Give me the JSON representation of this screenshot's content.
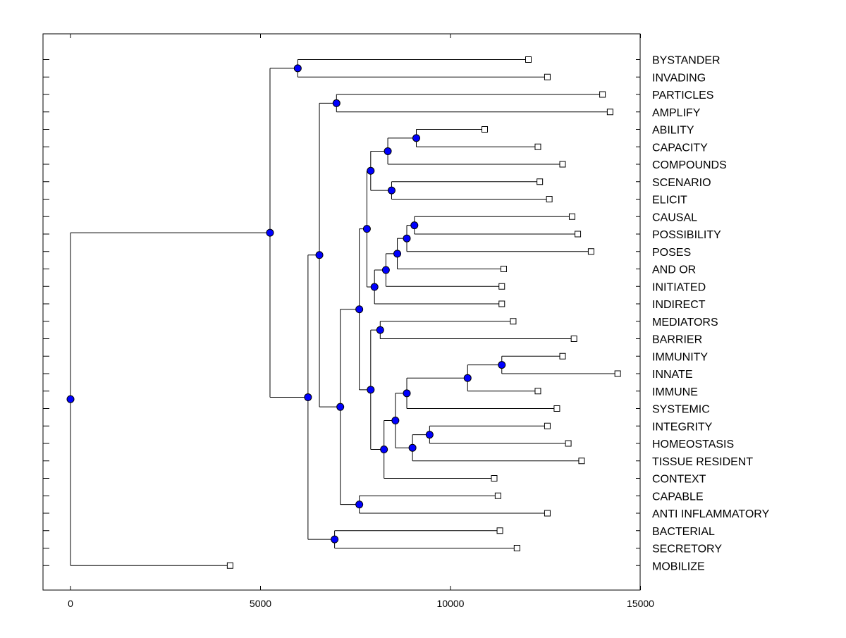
{
  "chart_data": {
    "type": "dendrogram",
    "xlim": [
      -700,
      15000
    ],
    "x_ticks": [
      {
        "value": 0,
        "label": "0"
      },
      {
        "value": 5000,
        "label": "5000"
      },
      {
        "value": 10000,
        "label": "10000"
      },
      {
        "value": 15000,
        "label": "15000"
      }
    ],
    "leaves": [
      {
        "label": "BYSTANDER",
        "x": 12050
      },
      {
        "label": "INVADING",
        "x": 12550
      },
      {
        "label": "PARTICLES",
        "x": 14000
      },
      {
        "label": "AMPLIFY",
        "x": 14200
      },
      {
        "label": "ABILITY",
        "x": 10900
      },
      {
        "label": "CAPACITY",
        "x": 12300
      },
      {
        "label": "COMPOUNDS",
        "x": 12950
      },
      {
        "label": "SCENARIO",
        "x": 12350
      },
      {
        "label": "ELICIT",
        "x": 12600
      },
      {
        "label": "CAUSAL",
        "x": 13200
      },
      {
        "label": "POSSIBILITY",
        "x": 13350
      },
      {
        "label": "POSES",
        "x": 13700
      },
      {
        "label": "AND OR",
        "x": 11400
      },
      {
        "label": "INITIATED",
        "x": 11350
      },
      {
        "label": "INDIRECT",
        "x": 11350
      },
      {
        "label": "MEDIATORS",
        "x": 11650
      },
      {
        "label": "BARRIER",
        "x": 13250
      },
      {
        "label": "IMMUNITY",
        "x": 12950
      },
      {
        "label": "INNATE",
        "x": 14400
      },
      {
        "label": "IMMUNE",
        "x": 12300
      },
      {
        "label": "SYSTEMIC",
        "x": 12800
      },
      {
        "label": "INTEGRITY",
        "x": 12550
      },
      {
        "label": "HOMEOSTASIS",
        "x": 13100
      },
      {
        "label": "TISSUE RESIDENT",
        "x": 13450
      },
      {
        "label": "CONTEXT",
        "x": 11150
      },
      {
        "label": "CAPABLE",
        "x": 11250
      },
      {
        "label": "ANTI INFLAMMATORY",
        "x": 12550
      },
      {
        "label": "BACTERIAL",
        "x": 11300
      },
      {
        "label": "SECRETORY",
        "x": 11750
      },
      {
        "label": "MOBILIZE",
        "x": 4200
      }
    ],
    "merges": [
      {
        "id": "m1",
        "x": 5980,
        "children": [
          "L0",
          "L1"
        ]
      },
      {
        "id": "m2",
        "x": 7000,
        "children": [
          "L2",
          "L3"
        ]
      },
      {
        "id": "m3",
        "x": 9100,
        "children": [
          "L4",
          "L5"
        ]
      },
      {
        "id": "m4",
        "x": 8350,
        "children": [
          "m3",
          "L6"
        ]
      },
      {
        "id": "m5",
        "x": 8450,
        "children": [
          "L7",
          "L8"
        ]
      },
      {
        "id": "m6",
        "x": 7900,
        "children": [
          "m4",
          "m5"
        ]
      },
      {
        "id": "m7",
        "x": 9050,
        "children": [
          "L9",
          "L10"
        ]
      },
      {
        "id": "m8",
        "x": 8850,
        "children": [
          "m7",
          "L11"
        ]
      },
      {
        "id": "m9",
        "x": 8600,
        "children": [
          "m8",
          "L12"
        ]
      },
      {
        "id": "m10",
        "x": 8300,
        "children": [
          "m9",
          "L13"
        ]
      },
      {
        "id": "m11",
        "x": 8000,
        "children": [
          "m10",
          "L14"
        ]
      },
      {
        "id": "m12",
        "x": 7800,
        "children": [
          "m6",
          "m11"
        ]
      },
      {
        "id": "m13",
        "x": 8150,
        "children": [
          "L15",
          "L16"
        ]
      },
      {
        "id": "m14",
        "x": 11350,
        "children": [
          "L17",
          "L18"
        ]
      },
      {
        "id": "m15",
        "x": 10450,
        "children": [
          "m14",
          "L19"
        ]
      },
      {
        "id": "m16",
        "x": 8850,
        "children": [
          "m15",
          "L20"
        ]
      },
      {
        "id": "m17",
        "x": 9450,
        "children": [
          "L21",
          "L22"
        ]
      },
      {
        "id": "m18",
        "x": 9000,
        "children": [
          "m17",
          "L23"
        ]
      },
      {
        "id": "m19",
        "x": 8550,
        "children": [
          "m16",
          "m18"
        ]
      },
      {
        "id": "m20",
        "x": 8250,
        "children": [
          "m19",
          "L24"
        ]
      },
      {
        "id": "m21",
        "x": 7900,
        "children": [
          "m13",
          "m20"
        ]
      },
      {
        "id": "m22",
        "x": 7600,
        "children": [
          "m12",
          "m21"
        ]
      },
      {
        "id": "m23",
        "x": 7600,
        "children": [
          "L25",
          "L26"
        ]
      },
      {
        "id": "m24",
        "x": 7100,
        "children": [
          "m22",
          "m23"
        ]
      },
      {
        "id": "m25",
        "x": 6550,
        "children": [
          "m2",
          "m24"
        ]
      },
      {
        "id": "m26",
        "x": 6950,
        "children": [
          "L27",
          "L28"
        ]
      },
      {
        "id": "m27",
        "x": 6250,
        "children": [
          "m25",
          "m26"
        ]
      },
      {
        "id": "m28",
        "x": 5250,
        "children": [
          "m1",
          "m27"
        ]
      },
      {
        "id": "m29",
        "x": 0,
        "children": [
          "m28",
          "L29"
        ]
      }
    ],
    "title": "",
    "xlabel": "",
    "ylabel": ""
  }
}
